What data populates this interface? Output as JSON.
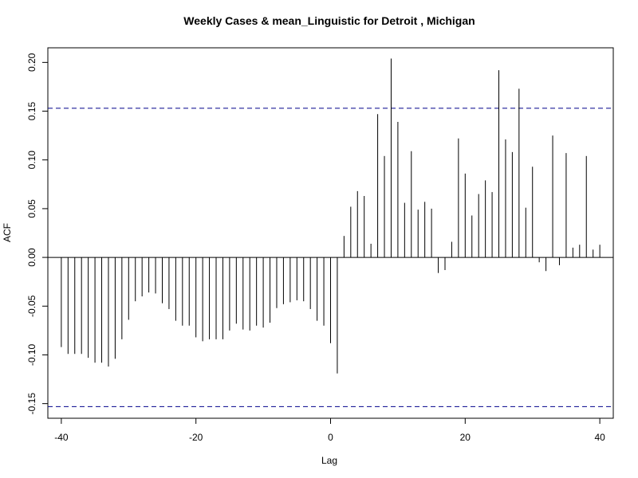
{
  "chart_data": {
    "type": "bar",
    "title": "Weekly Cases & mean_Linguistic for Detroit , Michigan",
    "xlabel": "Lag",
    "ylabel": "ACF",
    "xlim": [
      -42,
      42
    ],
    "ylim": [
      -0.165,
      0.215
    ],
    "x_ticks": [
      -40,
      -20,
      0,
      20,
      40
    ],
    "x_tick_labels": [
      "-40",
      "-20",
      "0",
      "20",
      "40"
    ],
    "y_ticks": [
      -0.15,
      -0.1,
      -0.05,
      0.0,
      0.05,
      0.1,
      0.15,
      0.2
    ],
    "y_tick_labels": [
      "-0.15",
      "-0.10",
      "-0.05",
      "0.00",
      "0.05",
      "0.10",
      "0.15",
      "0.20"
    ],
    "confidence_band": 0.153,
    "confidence_band_color": "#00008b",
    "grid": false,
    "legend": "none",
    "x": [
      -40,
      -39,
      -38,
      -37,
      -36,
      -35,
      -34,
      -33,
      -32,
      -31,
      -30,
      -29,
      -28,
      -27,
      -26,
      -25,
      -24,
      -23,
      -22,
      -21,
      -20,
      -19,
      -18,
      -17,
      -16,
      -15,
      -14,
      -13,
      -12,
      -11,
      -10,
      -9,
      -8,
      -7,
      -6,
      -5,
      -4,
      -3,
      -2,
      -1,
      0,
      1,
      2,
      3,
      4,
      5,
      6,
      7,
      8,
      9,
      10,
      11,
      12,
      13,
      14,
      15,
      16,
      17,
      18,
      19,
      20,
      21,
      22,
      23,
      24,
      25,
      26,
      27,
      28,
      29,
      30,
      31,
      32,
      33,
      34,
      35,
      36,
      37,
      38,
      39,
      40
    ],
    "values": [
      -0.092,
      -0.099,
      -0.099,
      -0.099,
      -0.103,
      -0.108,
      -0.108,
      -0.112,
      -0.104,
      -0.084,
      -0.064,
      -0.045,
      -0.04,
      -0.036,
      -0.037,
      -0.047,
      -0.053,
      -0.065,
      -0.07,
      -0.07,
      -0.082,
      -0.086,
      -0.084,
      -0.084,
      -0.084,
      -0.075,
      -0.068,
      -0.074,
      -0.075,
      -0.07,
      -0.072,
      -0.067,
      -0.052,
      -0.048,
      -0.046,
      -0.044,
      -0.045,
      -0.053,
      -0.065,
      -0.07,
      -0.088,
      -0.119,
      0.022,
      0.052,
      0.068,
      0.063,
      0.014,
      0.147,
      0.104,
      0.204,
      0.139,
      0.056,
      0.109,
      0.049,
      0.057,
      0.05,
      -0.016,
      -0.013,
      0.016,
      0.122,
      0.086,
      0.043,
      0.065,
      0.079,
      0.067,
      0.192,
      0.121,
      0.108,
      0.173,
      0.051,
      0.093,
      -0.005,
      -0.014,
      0.125,
      -0.008,
      0.107,
      0.01,
      0.013,
      0.104,
      0.008,
      0.013
    ]
  }
}
